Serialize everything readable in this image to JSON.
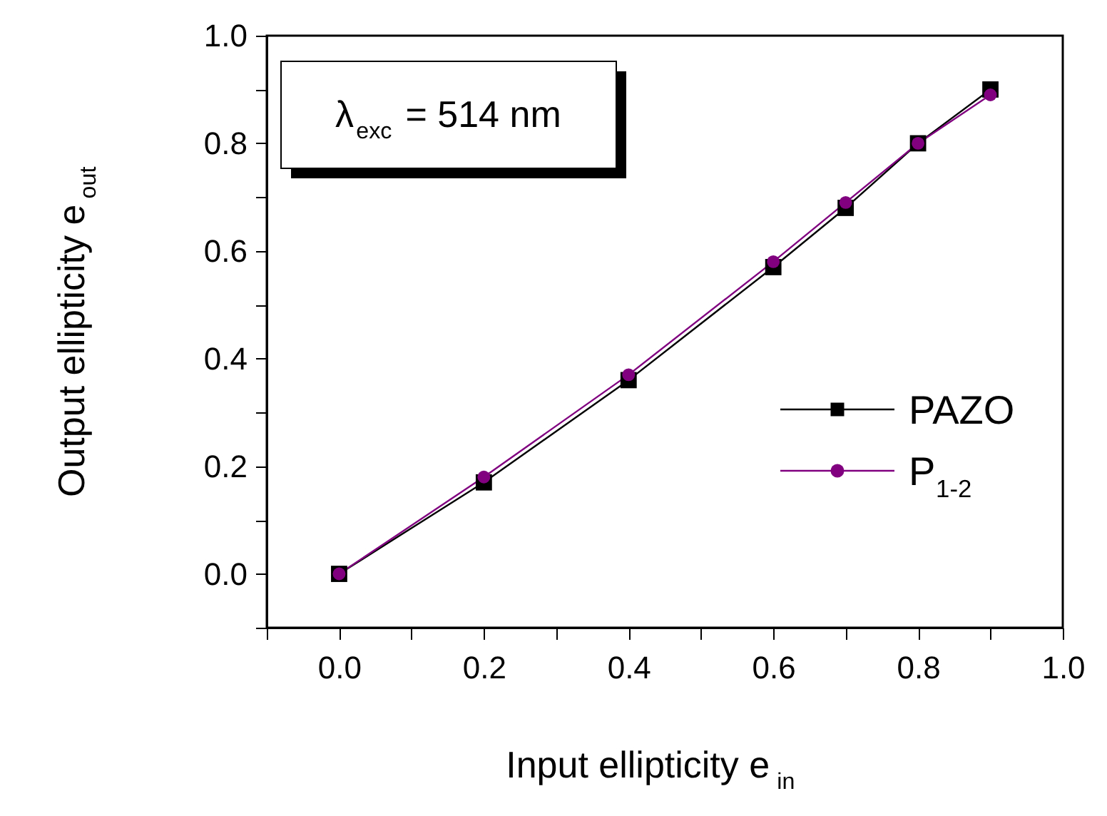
{
  "chart_data": {
    "type": "line",
    "xlabel": "Input ellipticity e$_{in}$",
    "ylabel": "Output ellipticity e$_{out}$",
    "annotations": [
      "λ$_{exc}$ = 514 nm"
    ],
    "x": [
      0,
      0.2,
      0.4,
      0.6,
      0.7,
      0.8,
      0.9
    ],
    "series": [
      {
        "name": "PAZO",
        "color": "#000000",
        "marker": "square",
        "values": [
          0,
          0.17,
          0.36,
          0.57,
          0.68,
          0.8,
          0.9
        ]
      },
      {
        "name": "P$_{1-2}$",
        "color": "#800080",
        "marker": "circle",
        "values": [
          0,
          0.18,
          0.37,
          0.58,
          0.69,
          0.8,
          0.89
        ]
      }
    ],
    "xlim": [
      -0.1,
      1.0
    ],
    "ylim": [
      -0.1,
      1.0
    ],
    "xticks": [
      {
        "value": -0.1,
        "label": null
      },
      {
        "value": 0,
        "label": "0.0"
      },
      {
        "value": 0.1,
        "label": null
      },
      {
        "value": 0.2,
        "label": "0.2"
      },
      {
        "value": 0.3,
        "label": null
      },
      {
        "value": 0.4,
        "label": "0.4"
      },
      {
        "value": 0.5,
        "label": null
      },
      {
        "value": 0.6,
        "label": "0.6"
      },
      {
        "value": 0.7,
        "label": null
      },
      {
        "value": 0.8,
        "label": "0.8"
      },
      {
        "value": 0.9,
        "label": null
      },
      {
        "value": 1,
        "label": "1.0"
      }
    ],
    "yticks": [
      {
        "value": -0.1,
        "label": null
      },
      {
        "value": 0,
        "label": "0.0"
      },
      {
        "value": 0.1,
        "label": null
      },
      {
        "value": 0.2,
        "label": "0.2"
      },
      {
        "value": 0.3,
        "label": null
      },
      {
        "value": 0.4,
        "label": "0.4"
      },
      {
        "value": 0.5,
        "label": null
      },
      {
        "value": 0.6,
        "label": "0.6"
      },
      {
        "value": 0.7,
        "label": null
      },
      {
        "value": 0.8,
        "label": "0.8"
      },
      {
        "value": 0.9,
        "label": null
      },
      {
        "value": 1,
        "label": "1.0"
      }
    ],
    "legend": "right",
    "grid": false
  }
}
